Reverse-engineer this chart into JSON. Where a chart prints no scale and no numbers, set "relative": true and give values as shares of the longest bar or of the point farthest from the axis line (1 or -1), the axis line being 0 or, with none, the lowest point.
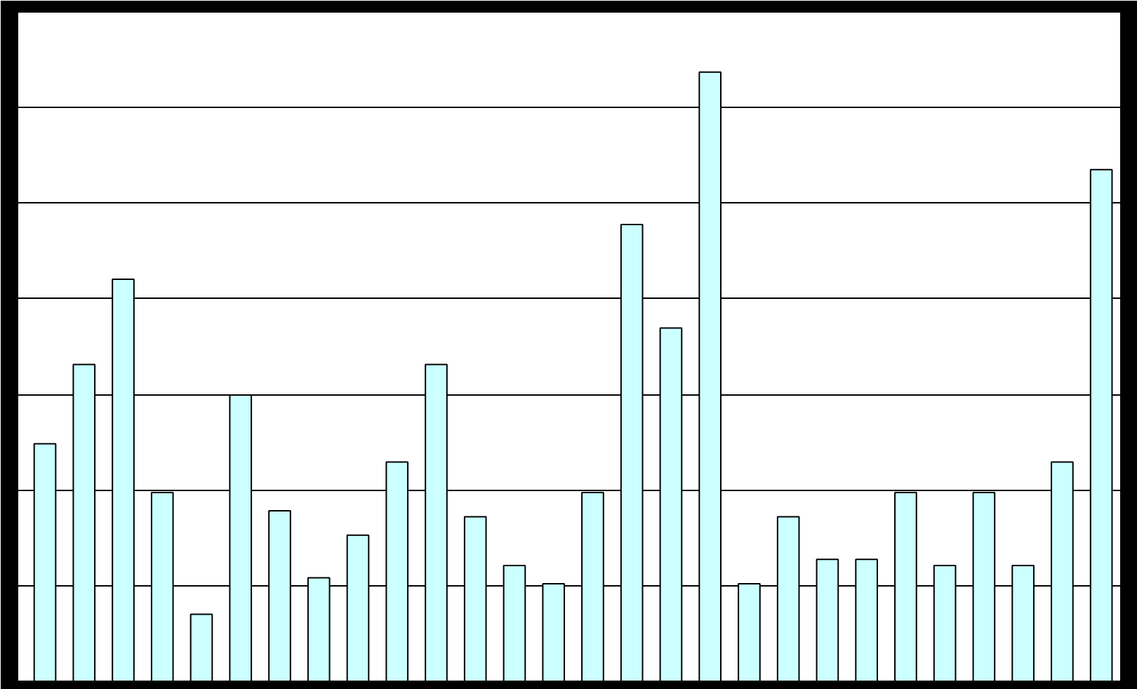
{
  "chart_data": {
    "type": "bar",
    "relative": true,
    "grid": "y",
    "color": "#ccffff",
    "categories": [
      null,
      null,
      null,
      null,
      null,
      null,
      null,
      null,
      null,
      null,
      null,
      null,
      null,
      null,
      null,
      null,
      null,
      null,
      null,
      null,
      null,
      null,
      null,
      null,
      null,
      null,
      null,
      null
    ],
    "values": [
      0.39,
      0.52,
      0.66,
      0.31,
      0.11,
      0.47,
      0.28,
      0.17,
      0.24,
      0.36,
      0.52,
      0.27,
      0.19,
      0.16,
      0.31,
      0.75,
      0.58,
      1,
      0.16,
      0.27,
      0.2,
      0.2,
      0.31,
      0.19,
      0.31,
      0.19,
      0.36,
      0.84
    ]
  }
}
